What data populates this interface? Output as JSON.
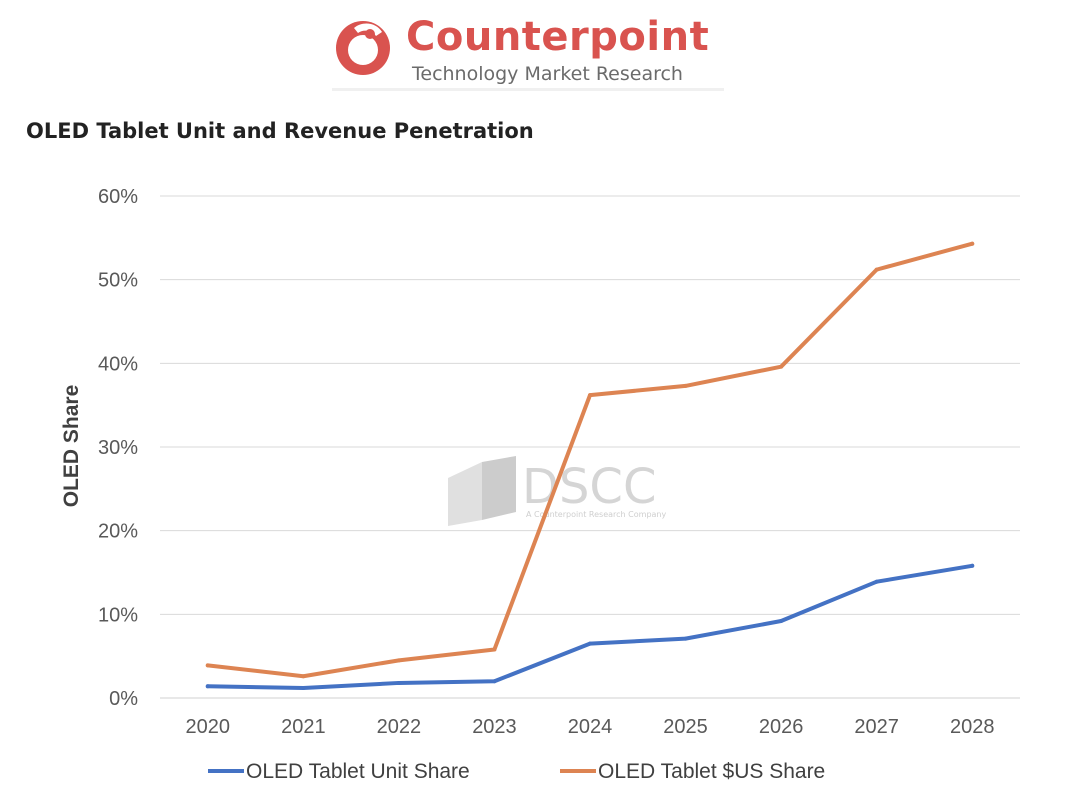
{
  "header": {
    "brand_name": "Counterpoint",
    "brand_tagline": "Technology Market Research",
    "brand_color": "#d9534f"
  },
  "watermark": {
    "name": "DSCC",
    "tagline": "A Counterpoint Research Company"
  },
  "chart_data": {
    "type": "line",
    "title": "OLED Tablet Unit and Revenue Penetration",
    "xlabel": "",
    "ylabel": "OLED Share",
    "categories": [
      "2020",
      "2021",
      "2022",
      "2023",
      "2024",
      "2025",
      "2026",
      "2027",
      "2028"
    ],
    "ylim": [
      0,
      60
    ],
    "yticks": [
      0,
      10,
      20,
      30,
      40,
      50,
      60
    ],
    "ytick_labels": [
      "0%",
      "10%",
      "20%",
      "30%",
      "40%",
      "50%",
      "60%"
    ],
    "grid": true,
    "legend_position": "bottom",
    "series": [
      {
        "name": "OLED Tablet Unit Share",
        "color": "#4472c4",
        "values": [
          1.4,
          1.2,
          1.8,
          2.0,
          6.5,
          7.1,
          9.2,
          13.9,
          15.8
        ]
      },
      {
        "name": "OLED Tablet $US Share",
        "color": "#dd8452",
        "values": [
          3.9,
          2.6,
          4.5,
          5.8,
          36.2,
          37.3,
          39.6,
          51.2,
          54.3
        ]
      }
    ]
  }
}
